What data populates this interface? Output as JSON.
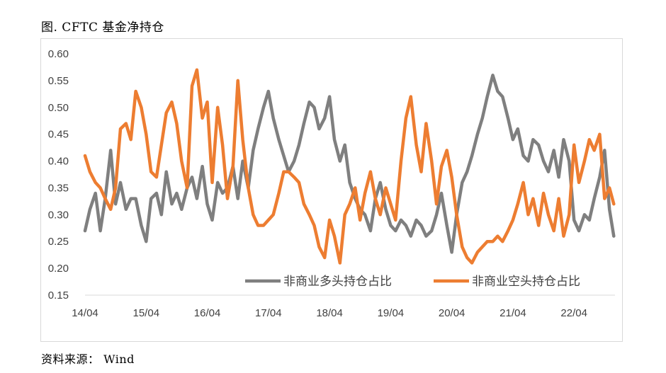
{
  "figure": {
    "title": "图. CFTC 基金净持仓",
    "source": "资料来源：  Wind"
  },
  "chart_data": {
    "type": "line",
    "ylim": [
      0.15,
      0.6
    ],
    "yticks": [
      "0.60",
      "0.55",
      "0.50",
      "0.45",
      "0.40",
      "0.35",
      "0.30",
      "0.25",
      "0.20",
      "0.15"
    ],
    "xticks": [
      "14/04",
      "15/04",
      "16/04",
      "17/04",
      "18/04",
      "19/04",
      "20/04",
      "21/04",
      "22/04"
    ],
    "legend_position": "bottom-right inside",
    "grid": false,
    "series": [
      {
        "name": "非商业多头持仓占比",
        "color": "#7f7f7f",
        "x": [
          2014.25,
          2014.33,
          2014.42,
          2014.5,
          2014.58,
          2014.67,
          2014.75,
          2014.83,
          2014.92,
          2015.0,
          2015.08,
          2015.17,
          2015.25,
          2015.33,
          2015.42,
          2015.5,
          2015.58,
          2015.67,
          2015.75,
          2015.83,
          2015.92,
          2016.0,
          2016.08,
          2016.17,
          2016.25,
          2016.33,
          2016.42,
          2016.5,
          2016.58,
          2016.67,
          2016.75,
          2016.83,
          2016.92,
          2017.0,
          2017.08,
          2017.17,
          2017.25,
          2017.33,
          2017.42,
          2017.5,
          2017.58,
          2017.67,
          2017.75,
          2017.83,
          2017.92,
          2018.0,
          2018.08,
          2018.17,
          2018.25,
          2018.33,
          2018.42,
          2018.5,
          2018.58,
          2018.67,
          2018.75,
          2018.83,
          2018.92,
          2019.0,
          2019.08,
          2019.17,
          2019.25,
          2019.33,
          2019.42,
          2019.5,
          2019.58,
          2019.67,
          2019.75,
          2019.83,
          2019.92,
          2020.0,
          2020.08,
          2020.17,
          2020.25,
          2020.33,
          2020.42,
          2020.5,
          2020.58,
          2020.67,
          2020.75,
          2020.83,
          2020.92,
          2021.0,
          2021.08,
          2021.17,
          2021.25,
          2021.33,
          2021.42,
          2021.5,
          2021.58,
          2021.67,
          2021.75,
          2021.83,
          2021.92,
          2022.0,
          2022.08,
          2022.17,
          2022.25,
          2022.33,
          2022.42,
          2022.5,
          2022.58,
          2022.67,
          2022.75,
          2022.83,
          2022.9
        ],
        "values": [
          0.27,
          0.31,
          0.34,
          0.27,
          0.33,
          0.42,
          0.32,
          0.36,
          0.31,
          0.33,
          0.33,
          0.28,
          0.25,
          0.33,
          0.34,
          0.3,
          0.38,
          0.32,
          0.34,
          0.31,
          0.35,
          0.37,
          0.33,
          0.39,
          0.32,
          0.29,
          0.36,
          0.34,
          0.35,
          0.39,
          0.33,
          0.4,
          0.35,
          0.42,
          0.46,
          0.5,
          0.53,
          0.48,
          0.44,
          0.41,
          0.38,
          0.4,
          0.43,
          0.47,
          0.51,
          0.5,
          0.46,
          0.48,
          0.52,
          0.44,
          0.4,
          0.43,
          0.36,
          0.33,
          0.31,
          0.3,
          0.27,
          0.33,
          0.36,
          0.31,
          0.28,
          0.27,
          0.29,
          0.28,
          0.26,
          0.29,
          0.28,
          0.26,
          0.27,
          0.3,
          0.34,
          0.28,
          0.23,
          0.3,
          0.36,
          0.38,
          0.41,
          0.45,
          0.48,
          0.52,
          0.56,
          0.53,
          0.52,
          0.48,
          0.44,
          0.46,
          0.41,
          0.4,
          0.44,
          0.43,
          0.4,
          0.38,
          0.42,
          0.37,
          0.44,
          0.4,
          0.29,
          0.27,
          0.3,
          0.29,
          0.33,
          0.37,
          0.42,
          0.31,
          0.26
        ]
      },
      {
        "name": "非商业空头持仓占比",
        "color": "#ed7d31",
        "x": [
          2014.25,
          2014.33,
          2014.42,
          2014.5,
          2014.58,
          2014.67,
          2014.75,
          2014.83,
          2014.92,
          2015.0,
          2015.08,
          2015.17,
          2015.25,
          2015.33,
          2015.42,
          2015.5,
          2015.58,
          2015.67,
          2015.75,
          2015.83,
          2015.92,
          2016.0,
          2016.08,
          2016.17,
          2016.25,
          2016.33,
          2016.42,
          2016.5,
          2016.58,
          2016.67,
          2016.75,
          2016.83,
          2016.92,
          2017.0,
          2017.08,
          2017.17,
          2017.25,
          2017.33,
          2017.42,
          2017.5,
          2017.58,
          2017.67,
          2017.75,
          2017.83,
          2017.92,
          2018.0,
          2018.08,
          2018.17,
          2018.25,
          2018.33,
          2018.42,
          2018.5,
          2018.58,
          2018.67,
          2018.75,
          2018.83,
          2018.92,
          2019.0,
          2019.08,
          2019.17,
          2019.25,
          2019.33,
          2019.42,
          2019.5,
          2019.58,
          2019.67,
          2019.75,
          2019.83,
          2019.92,
          2020.0,
          2020.08,
          2020.17,
          2020.25,
          2020.33,
          2020.42,
          2020.5,
          2020.58,
          2020.67,
          2020.75,
          2020.83,
          2020.92,
          2021.0,
          2021.08,
          2021.17,
          2021.25,
          2021.33,
          2021.42,
          2021.5,
          2021.58,
          2021.67,
          2021.75,
          2021.83,
          2021.92,
          2022.0,
          2022.08,
          2022.17,
          2022.25,
          2022.33,
          2022.42,
          2022.5,
          2022.58,
          2022.67,
          2022.75,
          2022.83,
          2022.9
        ],
        "values": [
          0.41,
          0.38,
          0.36,
          0.35,
          0.33,
          0.31,
          0.35,
          0.46,
          0.47,
          0.44,
          0.53,
          0.5,
          0.45,
          0.38,
          0.37,
          0.43,
          0.49,
          0.51,
          0.47,
          0.4,
          0.35,
          0.54,
          0.57,
          0.48,
          0.51,
          0.36,
          0.5,
          0.43,
          0.33,
          0.39,
          0.55,
          0.44,
          0.35,
          0.3,
          0.28,
          0.28,
          0.29,
          0.3,
          0.34,
          0.38,
          0.38,
          0.37,
          0.36,
          0.32,
          0.3,
          0.28,
          0.24,
          0.22,
          0.29,
          0.26,
          0.21,
          0.3,
          0.32,
          0.35,
          0.29,
          0.34,
          0.38,
          0.33,
          0.3,
          0.35,
          0.32,
          0.29,
          0.4,
          0.48,
          0.52,
          0.43,
          0.38,
          0.47,
          0.4,
          0.32,
          0.39,
          0.42,
          0.37,
          0.3,
          0.24,
          0.22,
          0.21,
          0.23,
          0.24,
          0.25,
          0.25,
          0.26,
          0.25,
          0.27,
          0.29,
          0.32,
          0.36,
          0.3,
          0.33,
          0.28,
          0.34,
          0.3,
          0.27,
          0.33,
          0.26,
          0.3,
          0.43,
          0.36,
          0.4,
          0.44,
          0.42,
          0.45,
          0.33,
          0.35,
          0.32
        ]
      }
    ]
  }
}
